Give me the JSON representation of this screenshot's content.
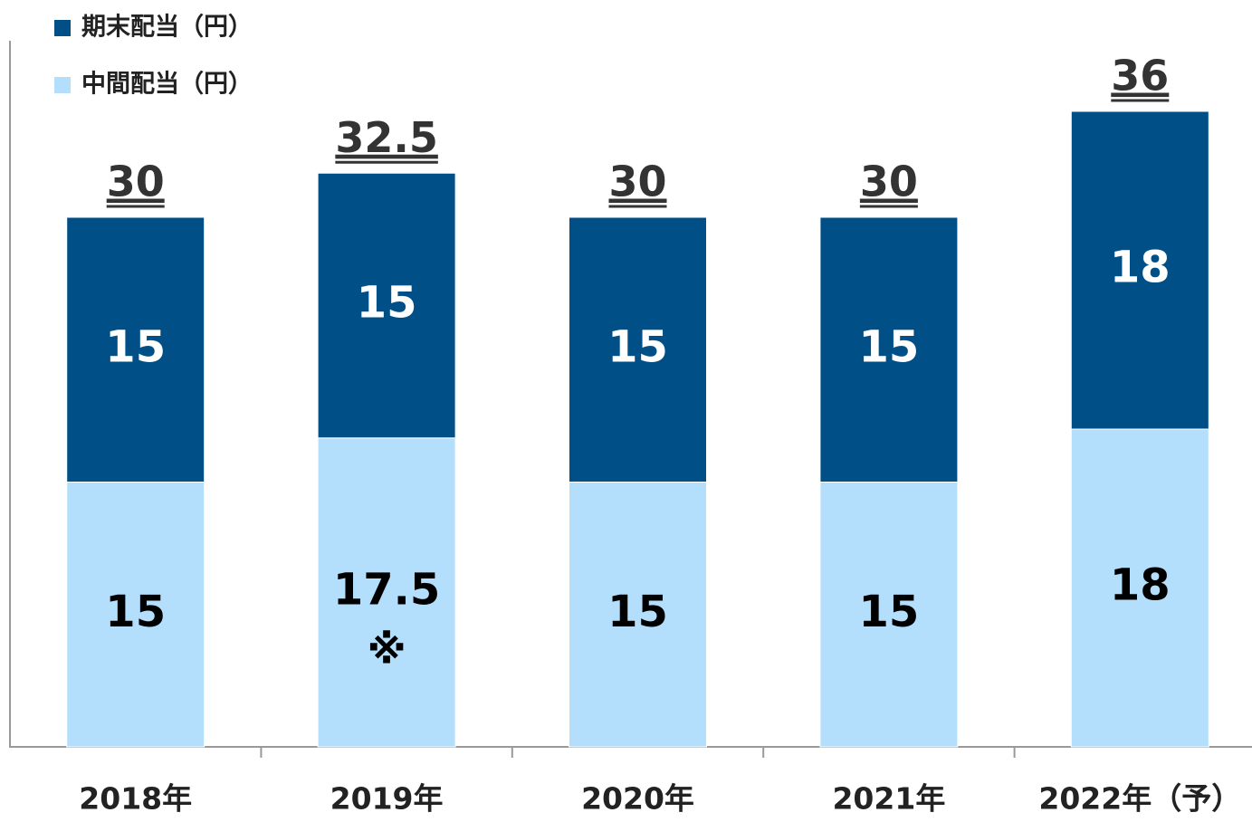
{
  "chart_data": {
    "type": "stacked_bar",
    "categories": [
      "2018年",
      "2019年",
      "2020年",
      "2021年",
      "2022年（予）"
    ],
    "series": [
      {
        "name": "中間配当（円）",
        "color": "#b3dffc",
        "label_color": "#000000",
        "values": [
          15,
          17.5,
          15,
          15,
          18
        ]
      },
      {
        "name": "期末配当（円）",
        "color": "#004f87",
        "label_color": "#ffffff",
        "values": [
          15,
          15,
          15,
          15,
          18
        ]
      }
    ],
    "totals": [
      30,
      32.5,
      30,
      30,
      36
    ],
    "annotation": "※",
    "ylim": [
      0,
      40
    ]
  }
}
